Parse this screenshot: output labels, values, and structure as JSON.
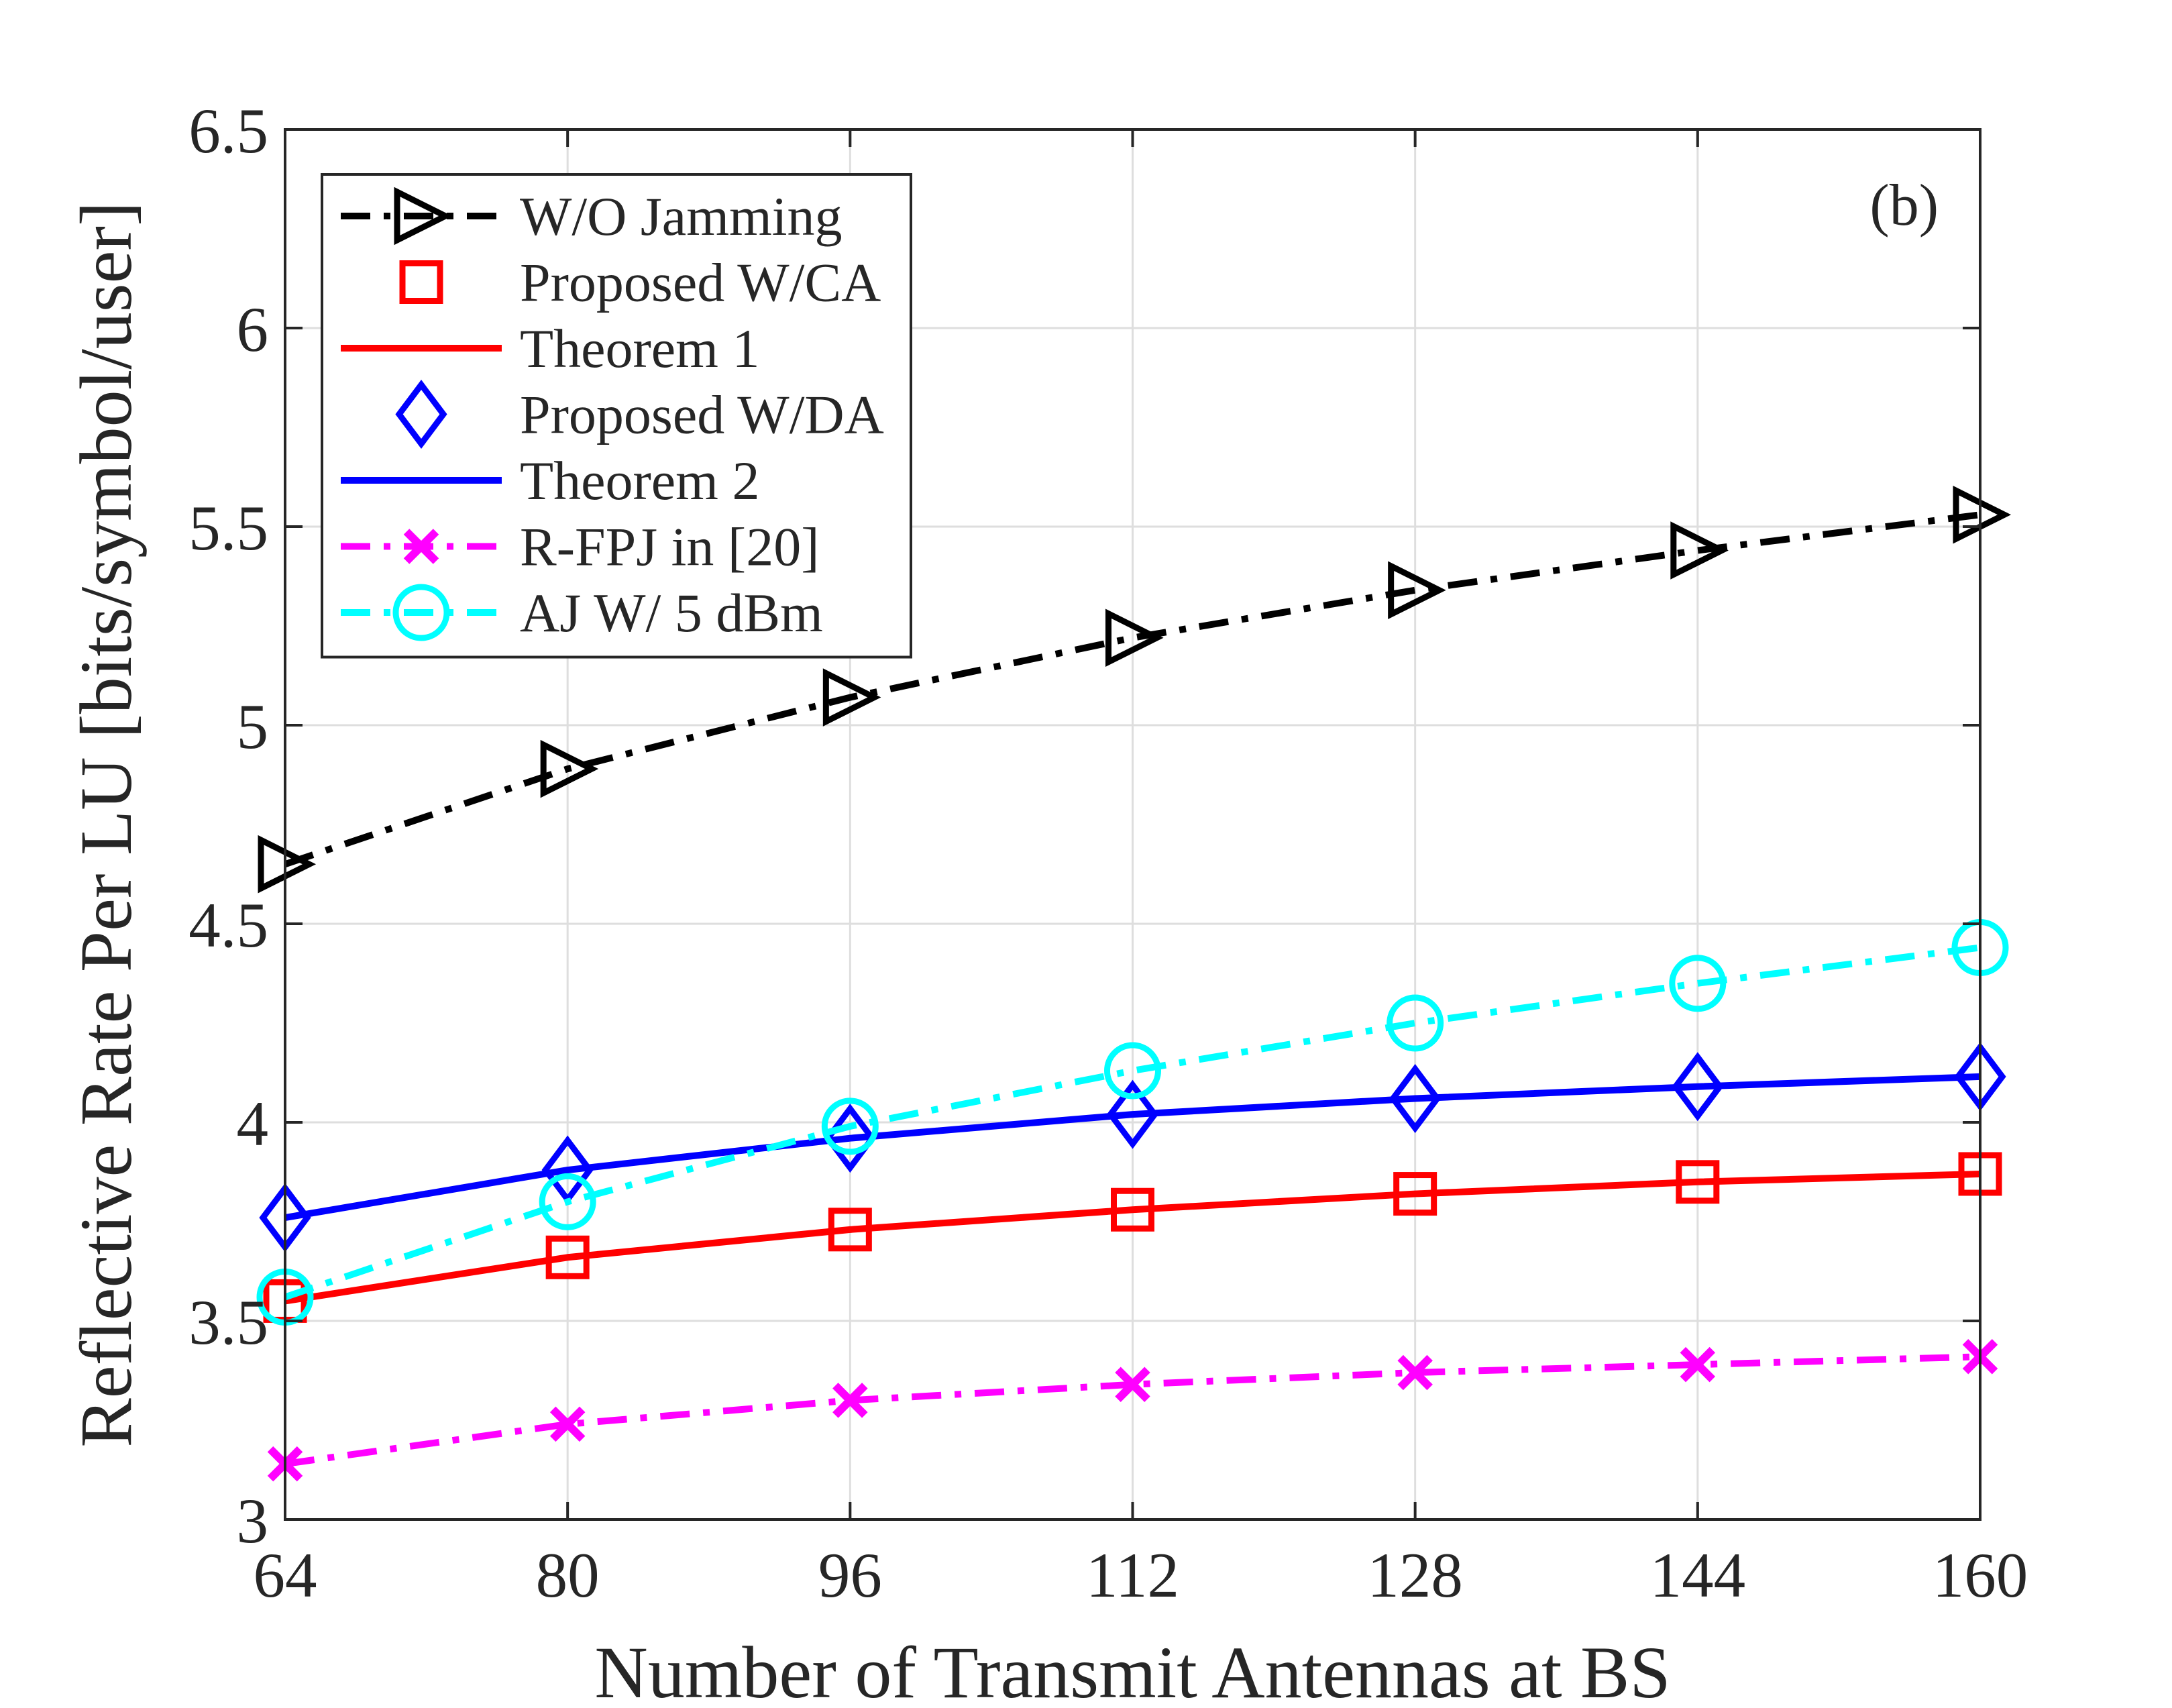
{
  "chart_data": {
    "type": "line",
    "title": "",
    "panel_label": "(b)",
    "xlabel": "Number of Transmit Antennas at BS",
    "ylabel": "Reflective Rate Per LU [bits/symbol/user]",
    "x": [
      64,
      80,
      96,
      112,
      128,
      144,
      160
    ],
    "xlim": [
      64,
      160
    ],
    "ylim": [
      3,
      6.5
    ],
    "xticks": [
      "64",
      "80",
      "96",
      "112",
      "128",
      "144",
      "160"
    ],
    "yticks": [
      {
        "value": 3,
        "label": "3"
      },
      {
        "value": 3.5,
        "label": "3.5"
      },
      {
        "value": 4,
        "label": "4"
      },
      {
        "value": 4.5,
        "label": "4.5"
      },
      {
        "value": 5,
        "label": "5"
      },
      {
        "value": 5.5,
        "label": "5.5"
      },
      {
        "value": 6,
        "label": "6"
      },
      {
        "value": 6.5,
        "label": "6.5"
      }
    ],
    "grid": true,
    "legend_position": "top-left",
    "series": [
      {
        "name": "W/O Jamming",
        "color": "#000000",
        "line": "dashdot",
        "marker": "triangle-right",
        "values": [
          4.65,
          4.89,
          5.07,
          5.22,
          5.34,
          5.44,
          5.53
        ]
      },
      {
        "name": "Proposed W/CA",
        "color": "#ff0000",
        "line": "none",
        "marker": "square",
        "values": [
          3.55,
          3.66,
          3.73,
          3.78,
          3.82,
          3.85,
          3.87
        ]
      },
      {
        "name": "Theorem 1",
        "color": "#ff0000",
        "line": "solid",
        "marker": "none",
        "values": [
          3.55,
          3.66,
          3.73,
          3.78,
          3.82,
          3.85,
          3.87
        ]
      },
      {
        "name": "Proposed W/DA",
        "color": "#0000ff",
        "line": "none",
        "marker": "diamond",
        "values": [
          3.76,
          3.88,
          3.96,
          4.02,
          4.06,
          4.09,
          4.115
        ]
      },
      {
        "name": "Theorem 2",
        "color": "#0000ff",
        "line": "solid",
        "marker": "none",
        "values": [
          3.76,
          3.88,
          3.96,
          4.02,
          4.06,
          4.09,
          4.115
        ]
      },
      {
        "name": "R-FPJ in [20]",
        "color": "#ff00ff",
        "line": "dashdot",
        "marker": "x",
        "values": [
          3.14,
          3.24,
          3.3,
          3.34,
          3.37,
          3.39,
          3.41
        ]
      },
      {
        "name": "AJ W/ 5 dBm",
        "color": "#00ffff",
        "line": "dashdot",
        "marker": "circle",
        "values": [
          3.56,
          3.8,
          3.99,
          4.13,
          4.25,
          4.35,
          4.44
        ]
      }
    ]
  }
}
